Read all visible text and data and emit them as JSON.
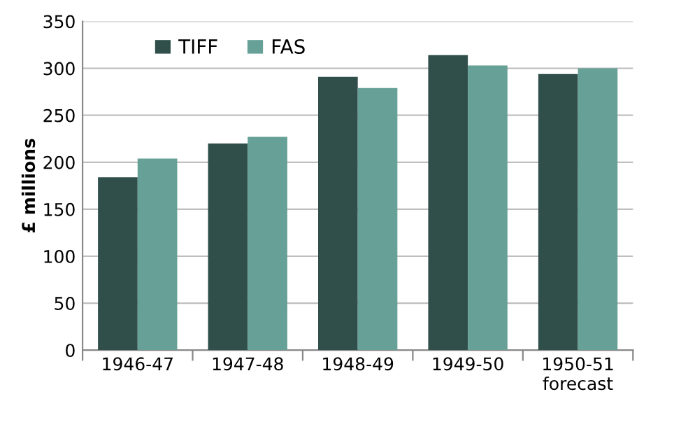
{
  "chart_data": {
    "type": "bar",
    "ylabel": "£ millions",
    "categories": [
      "1946-47",
      "1947-48",
      "1948-49",
      "1949-50",
      "1950-51\nforecast"
    ],
    "series": [
      {
        "name": "TIFF",
        "color": "#304f4a",
        "values": [
          184,
          220,
          291,
          314,
          294
        ]
      },
      {
        "name": "FAS",
        "color": "#66a096",
        "values": [
          204,
          227,
          279,
          303,
          300
        ]
      }
    ],
    "ylim": [
      0,
      350
    ],
    "yticks": [
      0,
      50,
      100,
      150,
      200,
      250,
      300,
      350
    ],
    "grid": "y",
    "legend": "top left"
  }
}
